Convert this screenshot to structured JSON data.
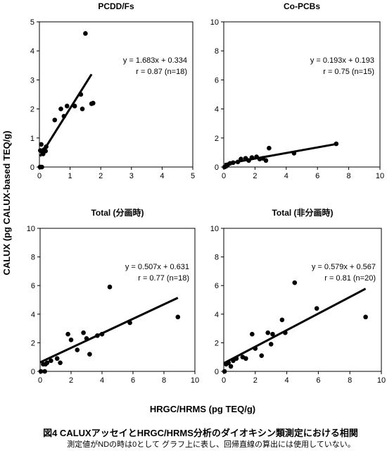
{
  "figure": {
    "ylabel": "CALUX (pg CALUX-based TEQ/g)",
    "xlabel": "HRGC/HRMS (pg TEQ/g)",
    "caption_main": "図4 CALUXアッセイとHRGC/HRMS分析のダイオキシン類測定における相関",
    "caption_sub": "測定値がNDの時は0として グラフ上に表し、回帰直線の算出には使用していない。"
  },
  "chart_data": [
    {
      "type": "scatter",
      "title": "PCDD/Fs",
      "xlim": [
        0,
        5
      ],
      "ylim": [
        0,
        5
      ],
      "xticks": [
        0,
        1,
        2,
        3,
        4,
        5
      ],
      "yticks": [
        0,
        1,
        2,
        3,
        4,
        5
      ],
      "equation": "y = 1.683x + 0.334",
      "stats": "r = 0.87 (n=18)",
      "fit": {
        "slope": 1.683,
        "intercept": 0.334,
        "x_range": [
          0.02,
          1.7
        ]
      },
      "points": [
        [
          0.02,
          0.0
        ],
        [
          0.04,
          0.0
        ],
        [
          0.08,
          0.0
        ],
        [
          0.03,
          0.57
        ],
        [
          0.06,
          0.78
        ],
        [
          0.1,
          0.5
        ],
        [
          0.12,
          0.45
        ],
        [
          0.15,
          0.6
        ],
        [
          0.2,
          0.55
        ],
        [
          0.22,
          0.7
        ],
        [
          0.5,
          1.62
        ],
        [
          0.7,
          2.0
        ],
        [
          0.8,
          1.75
        ],
        [
          0.9,
          2.1
        ],
        [
          1.15,
          2.1
        ],
        [
          1.35,
          2.5
        ],
        [
          1.4,
          2.0
        ],
        [
          1.5,
          4.6
        ],
        [
          1.7,
          2.18
        ],
        [
          1.75,
          2.2
        ]
      ]
    },
    {
      "type": "scatter",
      "title": "Co-PCBs",
      "xlim": [
        0,
        10
      ],
      "ylim": [
        0,
        10
      ],
      "xticks": [
        0,
        2,
        4,
        6,
        8,
        10
      ],
      "yticks": [
        0,
        2,
        4,
        6,
        8,
        10
      ],
      "equation": "y = 0.193x + 0.193",
      "stats": "r = 0.75 (n=15)",
      "fit": {
        "slope": 0.193,
        "intercept": 0.193,
        "x_range": [
          0.05,
          7.25
        ]
      },
      "points": [
        [
          0.05,
          0.0
        ],
        [
          0.15,
          0.05
        ],
        [
          0.25,
          0.15
        ],
        [
          0.4,
          0.25
        ],
        [
          0.6,
          0.3
        ],
        [
          0.9,
          0.35
        ],
        [
          1.1,
          0.55
        ],
        [
          1.4,
          0.6
        ],
        [
          1.6,
          0.45
        ],
        [
          1.8,
          0.65
        ],
        [
          2.1,
          0.7
        ],
        [
          2.3,
          0.55
        ],
        [
          2.5,
          0.6
        ],
        [
          2.7,
          0.45
        ],
        [
          2.9,
          1.3
        ],
        [
          4.5,
          0.95
        ],
        [
          7.2,
          1.6
        ]
      ]
    },
    {
      "type": "scatter",
      "title": "Total (分画時)",
      "xlim": [
        0,
        10
      ],
      "ylim": [
        0,
        10
      ],
      "xticks": [
        0,
        2,
        4,
        6,
        8,
        10
      ],
      "yticks": [
        0,
        2,
        4,
        6,
        8,
        10
      ],
      "equation": "y = 0.507x + 0.631",
      "stats": "r = 0.77 (n=18)",
      "fit": {
        "slope": 0.507,
        "intercept": 0.631,
        "x_range": [
          0.0,
          8.9
        ]
      },
      "points": [
        [
          0.05,
          0.0
        ],
        [
          0.3,
          0.0
        ],
        [
          0.2,
          0.5
        ],
        [
          0.35,
          0.5
        ],
        [
          0.45,
          0.6
        ],
        [
          0.7,
          0.75
        ],
        [
          1.1,
          0.9
        ],
        [
          1.3,
          0.6
        ],
        [
          1.8,
          2.6
        ],
        [
          2.0,
          2.2
        ],
        [
          2.4,
          1.5
        ],
        [
          2.8,
          2.7
        ],
        [
          3.0,
          2.3
        ],
        [
          3.2,
          1.2
        ],
        [
          3.7,
          2.5
        ],
        [
          4.0,
          2.6
        ],
        [
          4.5,
          5.9
        ],
        [
          5.8,
          3.4
        ],
        [
          8.9,
          3.8
        ]
      ]
    },
    {
      "type": "scatter",
      "title": "Total (非分画時)",
      "xlim": [
        0,
        10
      ],
      "ylim": [
        0,
        10
      ],
      "xticks": [
        0,
        2,
        4,
        6,
        8,
        10
      ],
      "yticks": [
        0,
        2,
        4,
        6,
        8,
        10
      ],
      "equation": "y = 0.579x + 0.567",
      "stats": "r = 0.81 (n=20)",
      "fit": {
        "slope": 0.579,
        "intercept": 0.567,
        "x_range": [
          0.0,
          9.0
        ]
      },
      "points": [
        [
          0.05,
          0.0
        ],
        [
          0.15,
          0.5
        ],
        [
          0.3,
          0.6
        ],
        [
          0.45,
          0.35
        ],
        [
          0.6,
          0.75
        ],
        [
          0.8,
          0.9
        ],
        [
          1.2,
          1.0
        ],
        [
          1.4,
          0.9
        ],
        [
          1.8,
          2.6
        ],
        [
          2.0,
          1.6
        ],
        [
          2.4,
          1.1
        ],
        [
          2.8,
          2.7
        ],
        [
          3.0,
          1.9
        ],
        [
          3.1,
          2.6
        ],
        [
          3.7,
          3.6
        ],
        [
          3.9,
          2.7
        ],
        [
          4.5,
          6.2
        ],
        [
          5.9,
          4.4
        ],
        [
          9.0,
          3.8
        ]
      ]
    }
  ]
}
